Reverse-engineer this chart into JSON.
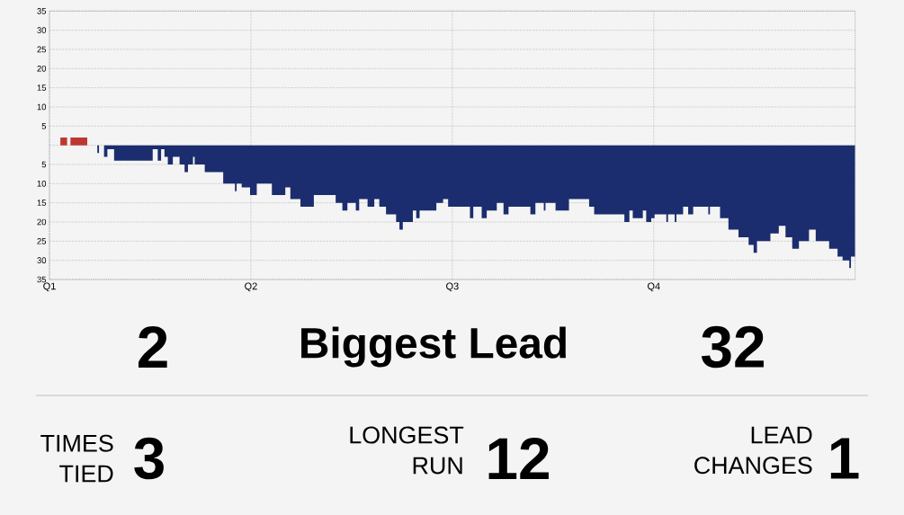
{
  "chart_data": [
    {
      "type": "area",
      "categories": [
        "Q1",
        null,
        null,
        null,
        null,
        null,
        null,
        null,
        null,
        null,
        null,
        null,
        null,
        null,
        null,
        null,
        null,
        null,
        null,
        null,
        null,
        null,
        null,
        null,
        null,
        null,
        null,
        null,
        null,
        null,
        null,
        null,
        null,
        null,
        null,
        null,
        null,
        null,
        null,
        null,
        null,
        null,
        null,
        null,
        null,
        null,
        null,
        null,
        null,
        null,
        null,
        null,
        null,
        null,
        null,
        null,
        null,
        null,
        null,
        null,
        null,
        null,
        null,
        null,
        null,
        null,
        null,
        null,
        null,
        null,
        null,
        null,
        null,
        null,
        null,
        null,
        null,
        null,
        null,
        null,
        null,
        null,
        null,
        null,
        null,
        null,
        null,
        null,
        null,
        null,
        null,
        null,
        null,
        null,
        null,
        null,
        null,
        null,
        null,
        null,
        null,
        null,
        null,
        null,
        null,
        null,
        null,
        null,
        null,
        null,
        null,
        null,
        null,
        null,
        null,
        null,
        null,
        null,
        null,
        null,
        "Q2",
        null,
        null,
        null,
        null,
        null,
        null,
        null,
        null,
        null,
        null,
        null,
        null,
        null,
        null,
        null,
        null,
        null,
        null,
        null,
        null,
        null,
        null,
        null,
        null,
        null,
        null,
        null,
        null,
        null,
        null,
        null,
        null,
        null,
        null,
        null,
        null,
        null,
        null,
        null,
        null,
        null,
        null,
        null,
        null,
        null,
        null,
        null,
        null,
        null,
        null,
        null,
        null,
        null,
        null,
        null,
        null,
        null,
        null,
        null,
        null,
        null,
        null,
        null,
        null,
        null,
        null,
        null,
        null,
        null,
        null,
        null,
        null,
        null,
        null,
        null,
        null,
        null,
        null,
        null,
        null,
        null,
        null,
        null,
        null,
        null,
        null,
        null,
        null,
        null,
        null,
        null,
        null,
        null,
        null,
        null,
        null,
        null,
        null,
        null,
        null,
        null,
        null,
        null,
        null,
        null,
        null,
        null,
        null,
        null,
        null,
        null,
        null,
        null,
        null,
        null,
        null,
        null,
        null,
        null,
        "Q3",
        null,
        null,
        null,
        null,
        null,
        null,
        null,
        null,
        null,
        null,
        null,
        null,
        null,
        null,
        null,
        null,
        null,
        null,
        null,
        null,
        null,
        null,
        null,
        null,
        null,
        null,
        null,
        null,
        null,
        null,
        null,
        null,
        null,
        null,
        null,
        null,
        null,
        null,
        null,
        null,
        null,
        null,
        null,
        null,
        null,
        null,
        null,
        null,
        null,
        null,
        null,
        null,
        null,
        null,
        null,
        null,
        null,
        null,
        null,
        null,
        null,
        null,
        null,
        null,
        null,
        null,
        null,
        null,
        null,
        null,
        null,
        null,
        null,
        null,
        null,
        null,
        null,
        null,
        null,
        null,
        null,
        null,
        null,
        null,
        null,
        null,
        null,
        null,
        null,
        null,
        null,
        null,
        null,
        null,
        null,
        null,
        null,
        null,
        null,
        null,
        null,
        null,
        null,
        null,
        null,
        null,
        null,
        null,
        null,
        null,
        null,
        null,
        null,
        null,
        null,
        null,
        null,
        null,
        null,
        "Q4",
        null,
        null,
        null,
        null,
        null,
        null,
        null,
        null,
        null,
        null,
        null,
        null,
        null,
        null,
        null,
        null,
        null,
        null,
        null,
        null,
        null,
        null,
        null,
        null,
        null,
        null,
        null,
        null,
        null,
        null,
        null,
        null,
        null,
        null,
        null,
        null,
        null,
        null,
        null,
        null,
        null,
        null,
        null,
        null,
        null,
        null,
        null,
        null,
        null,
        null,
        null,
        null,
        null,
        null,
        null,
        null,
        null,
        null,
        null,
        null,
        null,
        null,
        null,
        null,
        null,
        null,
        null,
        null,
        null,
        null,
        null,
        null,
        null,
        null,
        null,
        null,
        null,
        null,
        null,
        null,
        null,
        null,
        null,
        null,
        null,
        null,
        null,
        null,
        null,
        null,
        null,
        null,
        null,
        null,
        null,
        null,
        null,
        null,
        null,
        null,
        null,
        null,
        null,
        null,
        null,
        null,
        null,
        null,
        null,
        null,
        null,
        null,
        null,
        null,
        null,
        null,
        null,
        null,
        null,
        null
      ],
      "ylim": [
        -35,
        35
      ],
      "yticks": [
        {
          "value": -35,
          "label": "35"
        },
        {
          "value": -30,
          "label": "30"
        },
        {
          "value": -25,
          "label": "25"
        },
        {
          "value": -20,
          "label": "20"
        },
        {
          "value": -15,
          "label": "15"
        },
        {
          "value": -10,
          "label": "10"
        },
        {
          "value": -5,
          "label": "5"
        },
        {
          "value": 0,
          "label": null
        },
        5,
        10,
        15,
        20,
        25,
        30,
        35
      ],
      "grid": true,
      "series": [
        {
          "color": "#be3732",
          "values": [
            0,
            0,
            0,
            0,
            0,
            0,
            0,
            2,
            2,
            2,
            2,
            0,
            0,
            2,
            2,
            2,
            2,
            2,
            2,
            2,
            2,
            2,
            2,
            0,
            null,
            null,
            null,
            null,
            null,
            null,
            null,
            null,
            null,
            null,
            null,
            null,
            null,
            null,
            null,
            null,
            null,
            null,
            null,
            null,
            null,
            null,
            null,
            null,
            null,
            null,
            null,
            null,
            null,
            null,
            null,
            null,
            null,
            null,
            null,
            null,
            null,
            null,
            null,
            null,
            null,
            null,
            null,
            null,
            null,
            null,
            null,
            null,
            null,
            null,
            null,
            null,
            null,
            null,
            null,
            null,
            null,
            null,
            null,
            null,
            null,
            null,
            null,
            null,
            null,
            null,
            null,
            null,
            null,
            null,
            null,
            null,
            null,
            null,
            null,
            null,
            null,
            null,
            null,
            null,
            null,
            null,
            null,
            null,
            null,
            null,
            null,
            null,
            null,
            null,
            null,
            null,
            null,
            null,
            null,
            null,
            null,
            null,
            null,
            null,
            null,
            null,
            null,
            null,
            null,
            null,
            null,
            null,
            null,
            null,
            null,
            null,
            null,
            null,
            null,
            null,
            null,
            null,
            null,
            null,
            null,
            null,
            null,
            null,
            null,
            null,
            null,
            null,
            null,
            null,
            null,
            null,
            null,
            null,
            null,
            null,
            null,
            null,
            null,
            null,
            null,
            null,
            null,
            null,
            null,
            null,
            null,
            null,
            null,
            null,
            null,
            null,
            null,
            null,
            null,
            null,
            null,
            null,
            null,
            null,
            null,
            null,
            null,
            null,
            null,
            null,
            null,
            null,
            null,
            null,
            null,
            null,
            null,
            null,
            null,
            null,
            null,
            null,
            null,
            null,
            null,
            null,
            null,
            null,
            null,
            null,
            null,
            null,
            null,
            null,
            null,
            null,
            null,
            null,
            null,
            null,
            null,
            null,
            null,
            null,
            null,
            null,
            null,
            null,
            null,
            null,
            null,
            null,
            null,
            null,
            null,
            null,
            null,
            null,
            null,
            null,
            null,
            null,
            null,
            null,
            null,
            null,
            null,
            null,
            null,
            null,
            null,
            null,
            null,
            null,
            null,
            null,
            null,
            null,
            null,
            null,
            null,
            null,
            null,
            null,
            null,
            null,
            null,
            null,
            null,
            null,
            null,
            null,
            null,
            null,
            null,
            null,
            null,
            null,
            null,
            null,
            null,
            null,
            null,
            null,
            null,
            null,
            null,
            null,
            null,
            null,
            null,
            null,
            null,
            null,
            null,
            null,
            null,
            null,
            null,
            null,
            null,
            null,
            null,
            null,
            null,
            null,
            null,
            null,
            null,
            null,
            null,
            null,
            null,
            null,
            null,
            null,
            null,
            null,
            null,
            null,
            null,
            null,
            null,
            null,
            null,
            null,
            null,
            null,
            null,
            null,
            null,
            null,
            null,
            null,
            null,
            null,
            null,
            null,
            null,
            null,
            null,
            null,
            null,
            null,
            null,
            null,
            null,
            null,
            null,
            null,
            null,
            null,
            null,
            null,
            null,
            null,
            null,
            null,
            null,
            null,
            null,
            null,
            null,
            null,
            null,
            null,
            null,
            null,
            null,
            null,
            null,
            null,
            null,
            null,
            null,
            null,
            null,
            null,
            null,
            null,
            null,
            null,
            null,
            null,
            null,
            null,
            null,
            null,
            null,
            null,
            null,
            null,
            null,
            null,
            null,
            null,
            null,
            null,
            null,
            null,
            null,
            null,
            null,
            null,
            null,
            null,
            null,
            null,
            null,
            null,
            null,
            null,
            null,
            null,
            null,
            null,
            null,
            null,
            null,
            null,
            null,
            null,
            null,
            null,
            null,
            null,
            null,
            null,
            null,
            null,
            null,
            null,
            null,
            null,
            null,
            null,
            null,
            null,
            null,
            null,
            null,
            null,
            null,
            null,
            null,
            null,
            null,
            null,
            null,
            null,
            null,
            null,
            null,
            null,
            null,
            null,
            null,
            null,
            null,
            null,
            null,
            null,
            null,
            null,
            null,
            null,
            null,
            null,
            null,
            null,
            null,
            null,
            null,
            null,
            null,
            null,
            null,
            null,
            null,
            null,
            null
          ]
        },
        {
          "color": "#1b2d6e",
          "values": [
            null,
            null,
            null,
            null,
            null,
            null,
            null,
            null,
            null,
            null,
            null,
            null,
            null,
            null,
            null,
            null,
            null,
            null,
            null,
            null,
            null,
            null,
            null,
            0,
            0,
            0,
            0,
            0,
            0,
            -2,
            0,
            0,
            0,
            -3,
            -3,
            -1,
            -1,
            -1,
            -1,
            -4,
            -4,
            -4,
            -4,
            -4,
            -4,
            -4,
            -4,
            -4,
            -4,
            -4,
            -4,
            -4,
            -4,
            -4,
            -4,
            -4,
            -4,
            -4,
            -4,
            -4,
            -4,
            -4,
            -1,
            -1,
            -1,
            -4,
            -4,
            -1,
            -1,
            -3,
            -3,
            -5,
            -5,
            -5,
            -3,
            -3,
            -3,
            -3,
            -5,
            -5,
            -5,
            -7,
            -7,
            -5,
            -5,
            -5,
            -3,
            -5,
            -5,
            -5,
            -5,
            -5,
            -5,
            -7,
            -7,
            -7,
            -7,
            -7,
            -7,
            -7,
            -7,
            -7,
            -7,
            -7,
            -10,
            -10,
            -10,
            -10,
            -10,
            -10,
            -10,
            -12,
            -10,
            -10,
            -10,
            -11,
            -11,
            -11,
            -11,
            -11,
            -13,
            -13,
            -13,
            -13,
            -10,
            -10,
            -10,
            -10,
            -10,
            -10,
            -10,
            -10,
            -10,
            -13,
            -13,
            -13,
            -13,
            -13,
            -13,
            -13,
            -13,
            -11,
            -11,
            -11,
            -14,
            -14,
            -14,
            -14,
            -14,
            -14,
            -16,
            -16,
            -16,
            -16,
            -16,
            -16,
            -16,
            -16,
            -13,
            -13,
            -13,
            -13,
            -13,
            -13,
            -13,
            -13,
            -13,
            -13,
            -13,
            -13,
            -13,
            -15,
            -15,
            -15,
            -15,
            -17,
            -17,
            -17,
            -15,
            -15,
            -15,
            -15,
            -15,
            -17,
            -17,
            -14,
            -14,
            -14,
            -14,
            -14,
            -16,
            -16,
            -16,
            -16,
            -14,
            -14,
            -14,
            -16,
            -16,
            -16,
            -16,
            -18,
            -18,
            -18,
            -18,
            -18,
            -18,
            -20,
            -20,
            -22,
            -22,
            -20,
            -20,
            -20,
            -20,
            -20,
            -20,
            -17,
            -17,
            -19,
            -19,
            -17,
            -17,
            -17,
            -17,
            -17,
            -17,
            -17,
            -17,
            -17,
            -17,
            -15,
            -15,
            -15,
            -15,
            -14,
            -14,
            -14,
            -16,
            -16,
            -16,
            -16,
            -16,
            -16,
            -16,
            -16,
            -16,
            -16,
            -16,
            -16,
            -16,
            -19,
            -19,
            -16,
            -16,
            -16,
            -16,
            -16,
            -19,
            -19,
            -19,
            -17,
            -17,
            -17,
            -17,
            -17,
            -17,
            -15,
            -15,
            -15,
            -15,
            -18,
            -18,
            -18,
            -16,
            -16,
            -16,
            -16,
            -16,
            -16,
            -16,
            -16,
            -16,
            -16,
            -16,
            -16,
            -16,
            -18,
            -18,
            -18,
            -15,
            -15,
            -15,
            -15,
            -15,
            -17,
            -15,
            -15,
            -15,
            -15,
            -15,
            -15,
            -17,
            -17,
            -17,
            -17,
            -17,
            -17,
            -17,
            -17,
            -14,
            -14,
            -14,
            -14,
            -14,
            -14,
            -14,
            -14,
            -14,
            -14,
            -14,
            -14,
            -16,
            -16,
            -16,
            -18,
            -18,
            -18,
            -18,
            -18,
            -18,
            -18,
            -18,
            -18,
            -18,
            -18,
            -18,
            -18,
            -18,
            -18,
            -18,
            -18,
            -18,
            -20,
            -20,
            -20,
            -17,
            -17,
            -19,
            -19,
            -19,
            -19,
            -19,
            -19,
            -17,
            -17,
            -20,
            -20,
            -20,
            -19,
            -19,
            -18,
            -18,
            -18,
            -18,
            -18,
            -18,
            -18,
            -20,
            -18,
            -18,
            -18,
            -18,
            -20,
            -18,
            -18,
            -18,
            -18,
            -16,
            -16,
            -16,
            -18,
            -18,
            -18,
            -16,
            -16,
            -16,
            -16,
            -16,
            -16,
            -16,
            -16,
            -16,
            -18,
            -16,
            -16,
            -16,
            -16,
            -16,
            -16,
            -19,
            -19,
            -19,
            -19,
            -19,
            -22,
            -22,
            -22,
            -22,
            -22,
            -22,
            -24,
            -24,
            -24,
            -24,
            -24,
            -24,
            -26,
            -26,
            -26,
            -28,
            -28,
            -25,
            -25,
            -25,
            -25,
            -25,
            -25,
            -25,
            -25,
            -23,
            -23,
            -23,
            -23,
            -23,
            -21,
            -21,
            -21,
            -21,
            -24,
            -24,
            -24,
            -24,
            -27,
            -27,
            -27,
            -27,
            -25,
            -25,
            -25,
            -25,
            -25,
            -25,
            -22,
            -22,
            -22,
            -22,
            -25,
            -25,
            -25,
            -25,
            -25,
            -25,
            -25,
            -25,
            -27,
            -27,
            -27,
            -27,
            -27,
            -29,
            -29,
            -29,
            -30,
            -30,
            -30,
            -30,
            -32,
            -29,
            -29,
            -29
          ]
        }
      ]
    },
    {
      "type": "other",
      "annotations": [
        "2",
        "Biggest Lead",
        "32",
        "TIMES TIED",
        "3",
        "LONGEST RUN",
        "12",
        "LEAD CHANGES",
        "1"
      ]
    }
  ]
}
